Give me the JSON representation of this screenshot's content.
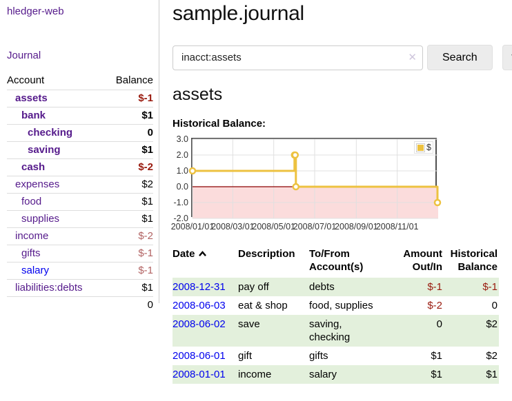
{
  "brand": {
    "title": "hledger-web"
  },
  "nav": {
    "journal": "Journal"
  },
  "sidebar": {
    "header": {
      "account": "Account",
      "balance": "Balance"
    },
    "accounts": [
      {
        "name": "assets",
        "balance": "$-1"
      },
      {
        "name": "bank",
        "balance": "$1"
      },
      {
        "name": "checking",
        "balance": "0"
      },
      {
        "name": "saving",
        "balance": "$1"
      },
      {
        "name": "cash",
        "balance": "$-2"
      },
      {
        "name": "expenses",
        "balance": "$2"
      },
      {
        "name": "food",
        "balance": "$1"
      },
      {
        "name": "supplies",
        "balance": "$1"
      },
      {
        "name": "income",
        "balance": "$-2"
      },
      {
        "name": "gifts",
        "balance": "$-1"
      },
      {
        "name": "salary",
        "balance": "$-1"
      },
      {
        "name": "liabilities:debts",
        "balance": "$1"
      }
    ],
    "total": "0"
  },
  "header": {
    "title": "sample.journal"
  },
  "search": {
    "value": "inacct:assets",
    "clear_icon": "✕",
    "submit_label": "Search",
    "help_label": "?"
  },
  "account_page": {
    "title": "assets",
    "chart_heading": "Historical Balance:"
  },
  "chart_data": {
    "type": "line",
    "title": "Historical Balance:",
    "step": true,
    "x_start": "2008-01-01",
    "x_end": "2009-01-01",
    "x_tick_labels": [
      "2008/01/01",
      "2008/03/01",
      "2008/05/01",
      "2008/07/01",
      "2008/09/01",
      "2008/11/01"
    ],
    "y_ticks": [
      "3.0",
      "2.0",
      "1.0",
      "0.0",
      "-1.0",
      "-2.0"
    ],
    "ylim": [
      -2,
      3
    ],
    "series": [
      {
        "name": "$",
        "color": "#edc240",
        "points": [
          {
            "x": "2008-01-01",
            "y": 1
          },
          {
            "x": "2008-06-01",
            "y": 2
          },
          {
            "x": "2008-06-02",
            "y": 2
          },
          {
            "x": "2008-06-03",
            "y": 0
          },
          {
            "x": "2008-12-31",
            "y": -1
          }
        ]
      }
    ],
    "legend_position": "top-right",
    "negative_region_fill": "#fbdcdc",
    "zero_line_color": "#8b0000",
    "grid_color": "#e0e0e0",
    "border_color": "#4f4f4f"
  },
  "register": {
    "headers": {
      "date": "Date",
      "description": "Description",
      "accounts": "To/From Account(s)",
      "amount": "Amount Out/In",
      "balance": "Historical Balance"
    },
    "rows": [
      {
        "date": "2008-12-31",
        "description": "pay off",
        "accounts": "debts",
        "amount": "$-1",
        "balance": "$-1"
      },
      {
        "date": "2008-06-03",
        "description": "eat & shop",
        "accounts": "food, supplies",
        "amount": "$-2",
        "balance": "0"
      },
      {
        "date": "2008-06-02",
        "description": "save",
        "accounts": "saving, checking",
        "amount": "0",
        "balance": "$2"
      },
      {
        "date": "2008-06-01",
        "description": "gift",
        "accounts": "gifts",
        "amount": "$1",
        "balance": "$2"
      },
      {
        "date": "2008-01-01",
        "description": "income",
        "accounts": "salary",
        "amount": "$1",
        "balance": "$1"
      }
    ]
  }
}
